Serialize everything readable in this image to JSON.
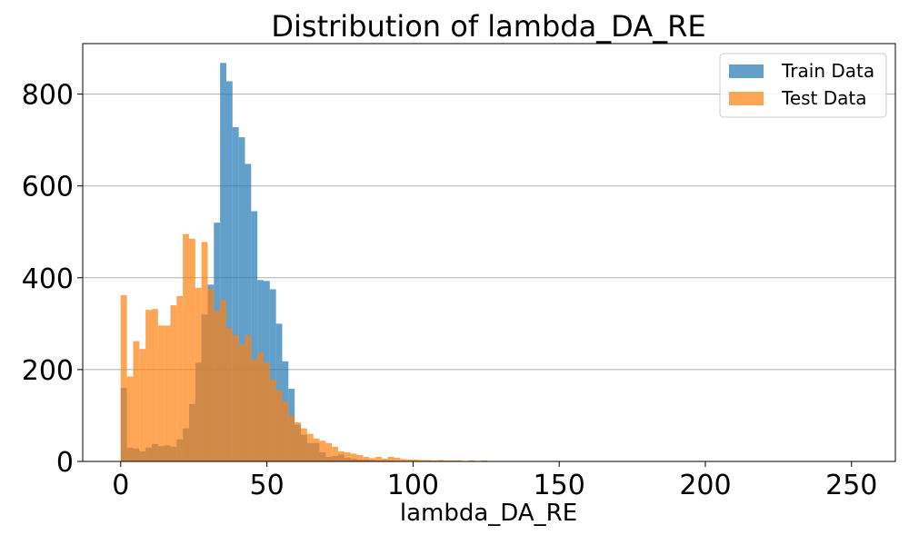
{
  "chart_data": {
    "type": "bar",
    "title": "Distribution of lambda_DA_RE",
    "xlabel": "lambda_DA_RE",
    "ylabel": "",
    "xlim": [
      -13,
      265
    ],
    "ylim": [
      0,
      910
    ],
    "xticks": [
      0,
      50,
      100,
      150,
      200,
      250
    ],
    "yticks": [
      0,
      200,
      400,
      600,
      800
    ],
    "grid": "y-axis",
    "legend_position": "top-right",
    "bin_width": 2.125,
    "bin_start": 0,
    "series": [
      {
        "name": "Train Data",
        "color": "#1f77b4",
        "values": [
          160,
          30,
          28,
          22,
          30,
          38,
          33,
          35,
          32,
          48,
          72,
          125,
          215,
          320,
          385,
          520,
          868,
          828,
          728,
          706,
          648,
          545,
          395,
          393,
          375,
          300,
          218,
          158,
          80,
          58,
          40,
          40,
          20,
          10,
          12,
          15,
          8,
          6,
          4,
          4,
          3,
          2,
          2,
          2,
          1,
          1,
          1,
          1
        ]
      },
      {
        "name": "Test Data",
        "color": "#ff7f0e",
        "values": [
          362,
          185,
          262,
          245,
          330,
          332,
          296,
          296,
          340,
          360,
          495,
          485,
          378,
          478,
          375,
          328,
          352,
          290,
          275,
          255,
          275,
          222,
          238,
          215,
          178,
          155,
          130,
          100,
          85,
          72,
          60,
          50,
          45,
          40,
          32,
          22,
          20,
          17,
          14,
          10,
          7,
          10,
          6,
          10,
          8,
          5,
          4,
          4,
          3,
          3,
          2,
          3,
          2,
          2,
          2,
          1,
          2,
          1,
          2,
          1,
          1,
          1,
          1,
          0,
          0,
          0,
          0,
          0,
          0,
          1,
          0,
          0,
          0,
          0,
          0,
          0,
          0,
          0,
          0,
          0,
          0,
          0,
          0,
          0,
          0,
          0,
          0,
          0,
          0,
          0,
          0,
          0,
          0,
          0,
          0,
          0,
          0,
          0,
          0,
          0,
          0,
          0,
          0,
          0,
          0,
          0,
          0,
          0,
          0,
          0,
          0,
          0,
          0,
          0,
          0,
          0,
          0,
          0,
          0,
          0
        ]
      }
    ]
  }
}
